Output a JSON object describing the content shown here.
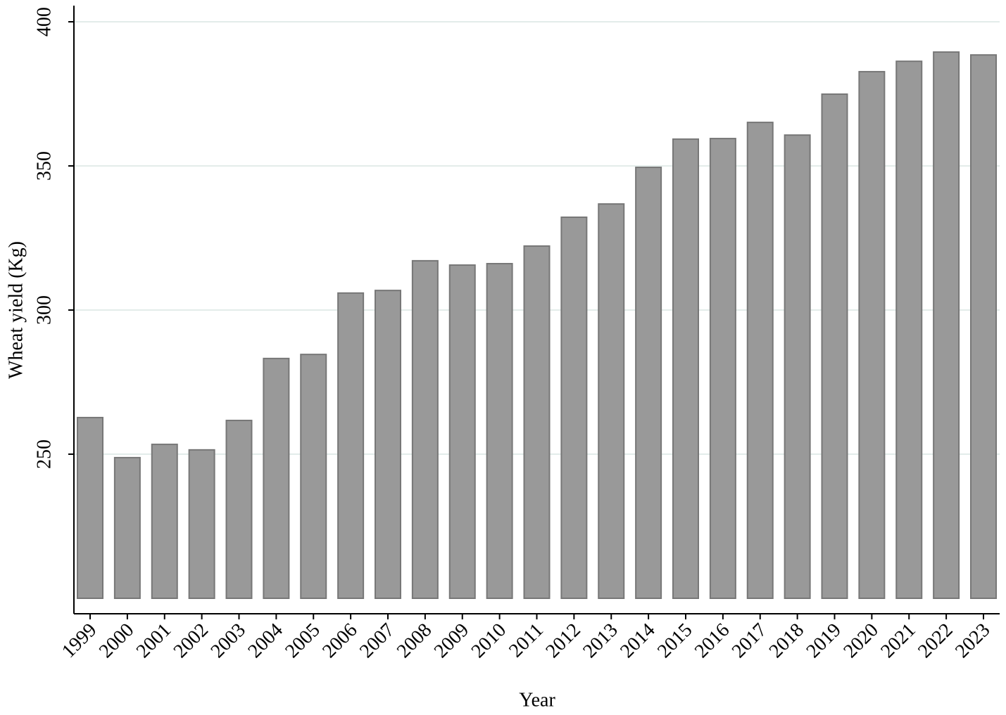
{
  "chart_data": {
    "type": "bar",
    "x_label": "Year",
    "y_label": "Wheat yield (Kg)",
    "categories": [
      "1999",
      "2000",
      "2001",
      "2002",
      "2003",
      "2004",
      "2005",
      "2006",
      "2007",
      "2008",
      "2009",
      "2010",
      "2011",
      "2012",
      "2013",
      "2014",
      "2015",
      "2016",
      "2017",
      "2018",
      "2019",
      "2020",
      "2021",
      "2022",
      "2023"
    ],
    "values": [
      262.7,
      248.8,
      253.4,
      251.5,
      261.7,
      283.2,
      284.6,
      305.9,
      306.8,
      317.1,
      315.6,
      316.1,
      322.2,
      332.2,
      336.8,
      349.5,
      359.3,
      359.5,
      365.1,
      360.7,
      374.9,
      382.7,
      386.3,
      389.5,
      388.5
    ],
    "color": "#999999",
    "ylim": [
      200,
      405
    ],
    "yticks": [
      250,
      300,
      350,
      400
    ],
    "grid": true
  }
}
